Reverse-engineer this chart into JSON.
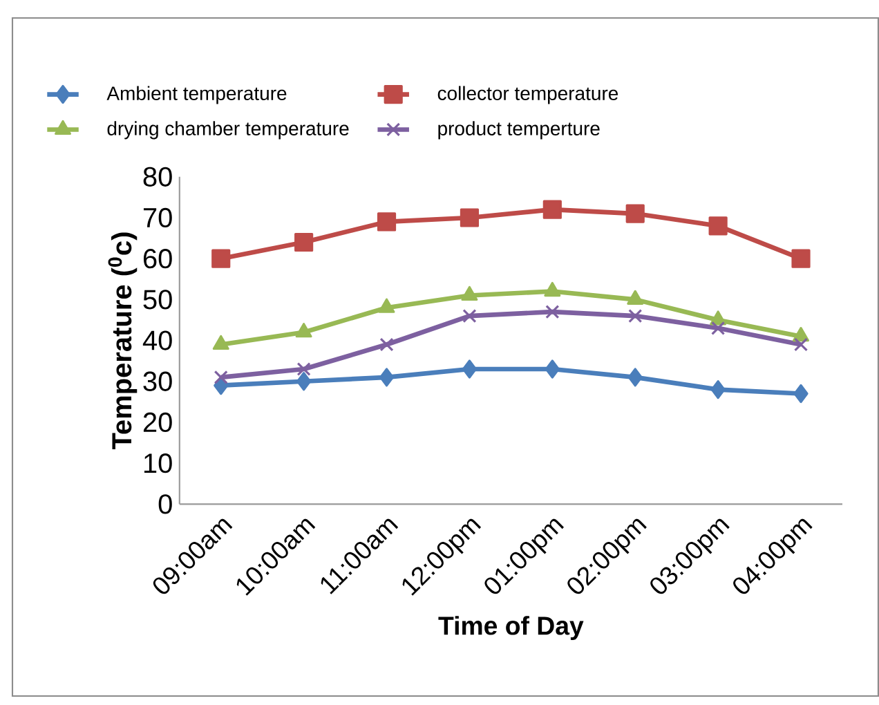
{
  "chart_data": {
    "type": "line",
    "xlabel": "Time of Day",
    "ylabel": "Temperature ($^{0}$c)",
    "categories": [
      "09:00am",
      "10:00am",
      "11:00am",
      "12:00pm",
      "01:00pm",
      "02:00pm",
      "03:00pm",
      "04:00pm"
    ],
    "series": [
      {
        "name": "Ambient temperature",
        "color": "#4a7ebb",
        "marker": "diamond",
        "values": [
          29,
          30,
          31,
          33,
          33,
          31,
          28,
          27
        ]
      },
      {
        "name": "collector temperature",
        "color": "#be4b48",
        "marker": "square",
        "values": [
          60,
          64,
          69,
          70,
          72,
          71,
          68,
          60
        ]
      },
      {
        "name": "drying chamber temperature",
        "color": "#98b954",
        "marker": "triangle",
        "values": [
          39,
          42,
          48,
          51,
          52,
          50,
          45,
          41
        ]
      },
      {
        "name": "product temperture",
        "color": "#7d60a0",
        "marker": "cross",
        "values": [
          31,
          33,
          39,
          46,
          47,
          46,
          43,
          39
        ]
      }
    ],
    "ylim": [
      0,
      80
    ],
    "yticks": [
      0,
      10,
      20,
      30,
      40,
      50,
      60,
      70,
      80
    ],
    "grid": false,
    "legend": "top"
  }
}
